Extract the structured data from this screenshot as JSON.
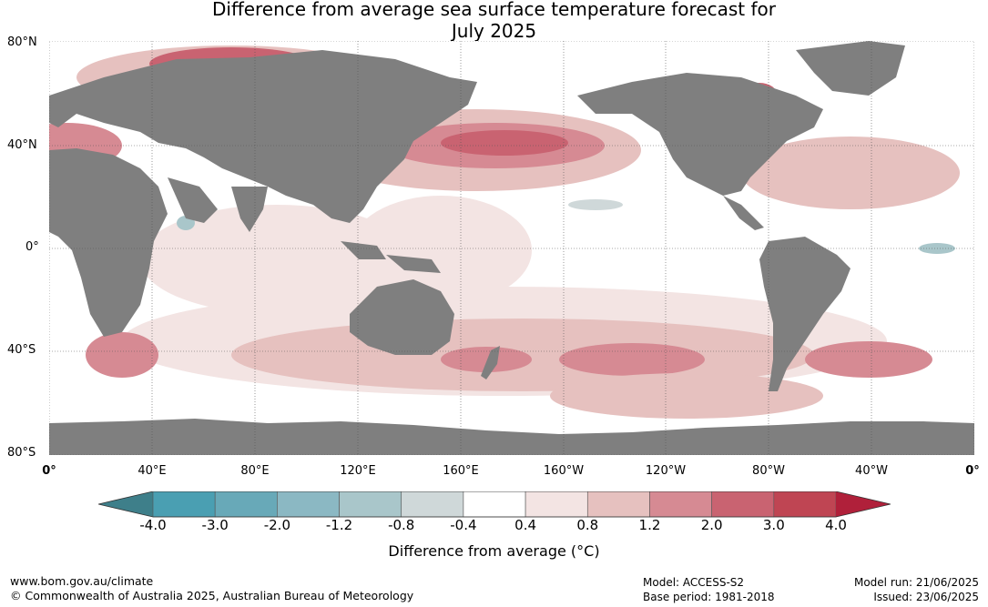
{
  "title_line1": "Difference from average sea surface temperature forecast for",
  "title_line2": "July 2025",
  "lat_labels": [
    "80°N",
    "40°N",
    "0°",
    "40°S",
    "80°S"
  ],
  "lon_labels": [
    "0°",
    "40°E",
    "80°E",
    "120°E",
    "160°E",
    "160°W",
    "120°W",
    "80°W",
    "40°W",
    "0°"
  ],
  "colorbar": {
    "ticks": [
      "-4.0",
      "-3.0",
      "-2.0",
      "-1.2",
      "-0.8",
      "-0.4",
      "0.4",
      "0.8",
      "1.2",
      "2.0",
      "3.0",
      "4.0"
    ],
    "under_color": "#3e7f8a",
    "over_color": "#b0203a",
    "colors": [
      "#4a9fb2",
      "#68a9b8",
      "#8bb8c3",
      "#a9c6ca",
      "#cfd8d9",
      "#ffffff",
      "#f3e4e3",
      "#e6c1bf",
      "#d68a93",
      "#c96371",
      "#bf4553"
    ],
    "title": "Difference from average (°C)"
  },
  "colors": {
    "land": "#7f7f7f",
    "ocean": "#ffffff",
    "ice": "#ffffff"
  },
  "footer": {
    "site": "www.bom.gov.au/climate",
    "copyright": "© Commonwealth of Australia 2025, Australian Bureau of Meteorology",
    "model": "Model: ACCESS-S2",
    "base_period": "Base period: 1981-2018",
    "model_run": "Model run: 21/06/2025",
    "issued": "Issued: 23/06/2025"
  }
}
